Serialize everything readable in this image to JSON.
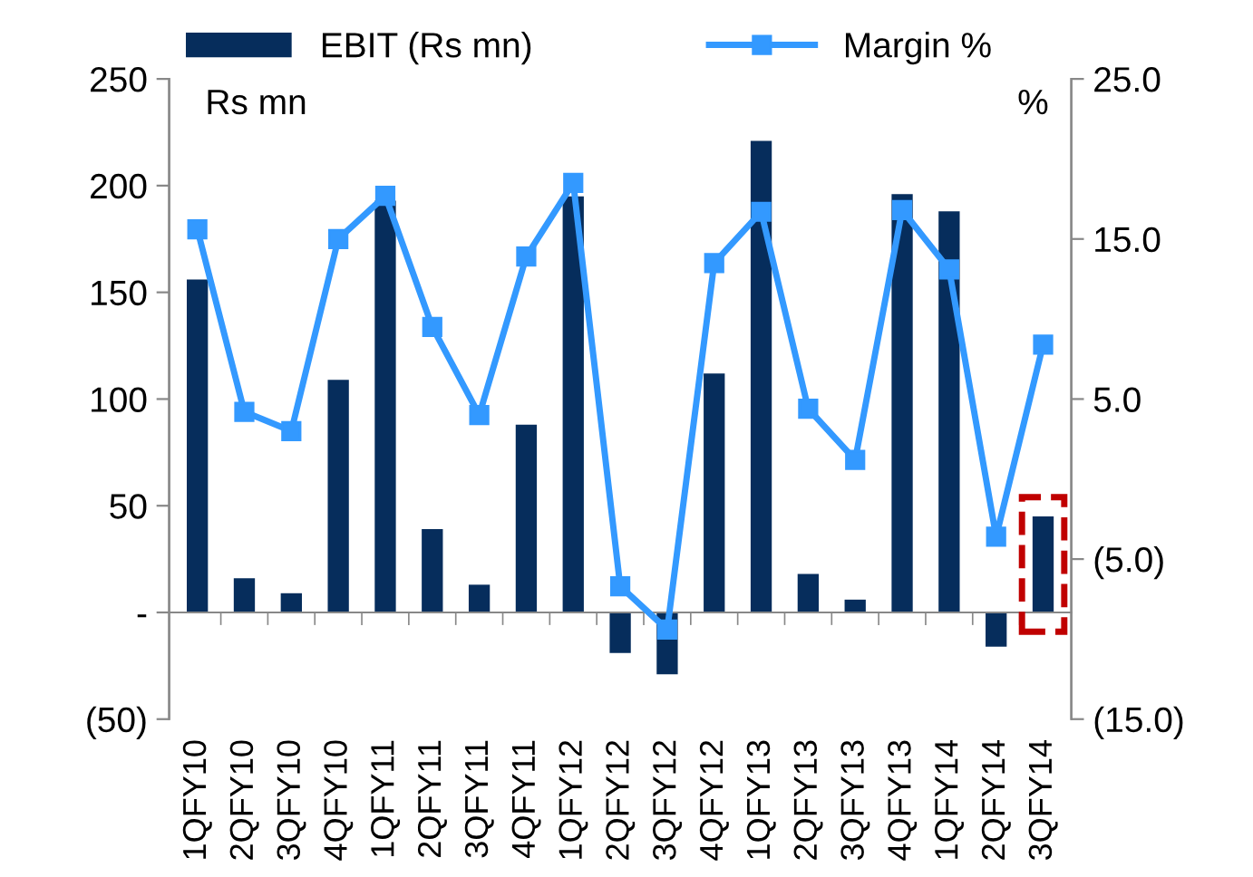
{
  "chart_data": {
    "type": "bar",
    "ylabel": "Rs mn",
    "y2label": "%",
    "categories": [
      "1QFY10",
      "2QFY10",
      "3QFY10",
      "4QFY10",
      "1QFY11",
      "2QFY11",
      "3QFY11",
      "4QFY11",
      "1QFY12",
      "2QFY12",
      "3QFY12",
      "4QFY12",
      "1QFY13",
      "2QFY13",
      "3QFY13",
      "4QFY13",
      "1QFY14",
      "2QFY14",
      "3QFY14"
    ],
    "series": [
      {
        "name": "EBIT (Rs mn)",
        "color": "#062d5c",
        "values": [
          156,
          16,
          9,
          109,
          193,
          39,
          13,
          88,
          195,
          -19,
          -29,
          112,
          221,
          18,
          6,
          196,
          188,
          -16,
          45
        ]
      },
      {
        "name": "Margin %",
        "type": "line",
        "axis": "y2",
        "color": "#3399ff",
        "marker": "square",
        "values": [
          15.6,
          4.2,
          3.0,
          15.0,
          17.7,
          9.5,
          4.0,
          13.9,
          18.5,
          -6.7,
          -9.4,
          13.5,
          16.7,
          4.4,
          1.2,
          16.8,
          13.1,
          -3.6,
          8.4
        ]
      }
    ],
    "ylim": [
      -50,
      250
    ],
    "yticks": [
      {
        "value": -50,
        "label": "(50)"
      },
      {
        "value": 0,
        "label": "-"
      },
      50,
      100,
      150,
      200,
      250
    ],
    "y2lim": [
      -15,
      25
    ],
    "y2ticks": [
      {
        "value": -15,
        "label": "(15.0)"
      },
      {
        "value": -5,
        "label": "(5.0)"
      },
      {
        "value": 5,
        "label": "5.0"
      },
      {
        "value": 15,
        "label": "15.0"
      },
      {
        "value": 25,
        "label": "25.0"
      }
    ],
    "legend": "top"
  }
}
